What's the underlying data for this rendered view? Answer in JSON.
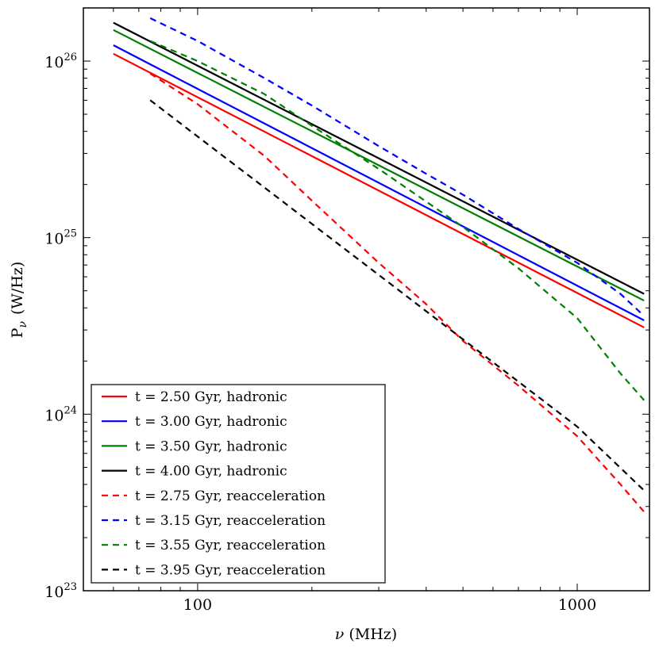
{
  "chart_data": {
    "type": "line",
    "scale": {
      "x": "log",
      "y": "log"
    },
    "xlabel_symbol": "ν",
    "xlabel_unit": "(MHz)",
    "ylabel_symbol": "P",
    "ylabel_sub": "ν",
    "ylabel_unit": "(W/Hz)",
    "xlim": [
      50,
      1550
    ],
    "ylim": [
      1e+23,
      2e+26
    ],
    "x_ticks": [
      {
        "value": 100,
        "label": "100"
      },
      {
        "value": 1000,
        "label": "1000"
      }
    ],
    "y_ticks": [
      {
        "value": 1e+23,
        "base": "10",
        "exp": "23"
      },
      {
        "value": 1e+24,
        "base": "10",
        "exp": "24"
      },
      {
        "value": 1e+25,
        "base": "10",
        "exp": "25"
      },
      {
        "value": 1e+26,
        "base": "10",
        "exp": "26"
      }
    ],
    "legend_position": "lower-left",
    "series": [
      {
        "name": "t = 2.50 Gyr, hadronic",
        "color": "#ff0000",
        "dash": false,
        "points": [
          [
            60,
            1.1e+26
          ],
          [
            1500,
            3.1e+24
          ]
        ]
      },
      {
        "name": "t = 3.00 Gyr, hadronic",
        "color": "#0000ff",
        "dash": false,
        "points": [
          [
            60,
            1.23e+26
          ],
          [
            1500,
            3.4e+24
          ]
        ]
      },
      {
        "name": "t = 3.50 Gyr, hadronic",
        "color": "#008000",
        "dash": false,
        "points": [
          [
            60,
            1.5e+26
          ],
          [
            1500,
            4.4e+24
          ]
        ]
      },
      {
        "name": "t = 4.00 Gyr, hadronic",
        "color": "#000000",
        "dash": false,
        "points": [
          [
            60,
            1.65e+26
          ],
          [
            1500,
            4.8e+24
          ]
        ]
      },
      {
        "name": "t = 2.75 Gyr, reacceleration",
        "color": "#ff0000",
        "dash": true,
        "points": [
          [
            75,
            8.5e+25
          ],
          [
            100,
            5.7e+25
          ],
          [
            150,
            2.9e+25
          ],
          [
            200,
            1.62e+25
          ],
          [
            300,
            7.2e+24
          ],
          [
            400,
            4.2e+24
          ],
          [
            500,
            2.6e+24
          ],
          [
            700,
            1.45e+24
          ],
          [
            1000,
            7.5e+23
          ],
          [
            1300,
            4e+23
          ],
          [
            1500,
            2.8e+23
          ]
        ]
      },
      {
        "name": "t = 3.15 Gyr, reacceleration",
        "color": "#0000ff",
        "dash": true,
        "points": [
          [
            75,
            1.75e+26
          ],
          [
            100,
            1.3e+26
          ],
          [
            150,
            8e+25
          ],
          [
            200,
            5.6e+25
          ],
          [
            300,
            3.3e+25
          ],
          [
            400,
            2.3e+25
          ],
          [
            500,
            1.75e+25
          ],
          [
            700,
            1.12e+25
          ],
          [
            1000,
            7.2e+24
          ],
          [
            1300,
            4.8e+24
          ],
          [
            1500,
            3.6e+24
          ]
        ]
      },
      {
        "name": "t = 3.55 Gyr, reacceleration",
        "color": "#008000",
        "dash": true,
        "points": [
          [
            75,
            1.3e+26
          ],
          [
            100,
            1e+26
          ],
          [
            150,
            6.5e+25
          ],
          [
            200,
            4.3e+25
          ],
          [
            300,
            2.45e+25
          ],
          [
            400,
            1.6e+25
          ],
          [
            500,
            1.15e+25
          ],
          [
            700,
            6.7e+24
          ],
          [
            1000,
            3.5e+24
          ],
          [
            1300,
            1.7e+24
          ],
          [
            1500,
            1.2e+24
          ]
        ]
      },
      {
        "name": "t = 3.95 Gyr, reacceleration",
        "color": "#000000",
        "dash": true,
        "points": [
          [
            75,
            6e+25
          ],
          [
            1000,
            8.5e+23
          ],
          [
            1500,
            3.7e+23
          ]
        ]
      }
    ]
  }
}
